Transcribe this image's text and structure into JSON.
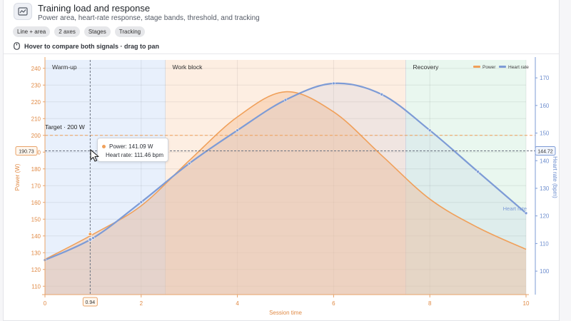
{
  "header": {
    "icon": "chart-icon",
    "title": "Training load and response",
    "subtitle": "Power area, heart-rate response, stage bands, threshold, and tracking"
  },
  "chips": [
    "Line + area",
    "2 axes",
    "Stages",
    "Tracking"
  ],
  "hint": {
    "icon": "mouse-icon",
    "text": "Hover to compare both signals · drag to pan"
  },
  "colors": {
    "power": "#f0a05a",
    "power_fill": "#f7c9a2",
    "heart": "#7d9bd6",
    "warmup_band": "#e8f0fc",
    "work_band": "#fdeee2",
    "recovery_band": "#e9f7ef",
    "threshold": "#f0a05a"
  },
  "tooltip": {
    "power_label": "Power: 141.09 W",
    "heart_label": "Heart rate: 111.46 bpm"
  },
  "crosshair": {
    "x_value": "0.94",
    "left_value": "190.73",
    "right_value": "144.72"
  },
  "chart_data": {
    "type": "line",
    "xlabel": "Session time",
    "ylabel_left": "Power (W)",
    "ylabel_right": "Heart rate (bpm)",
    "xlim": [
      0,
      10
    ],
    "ylim_left": [
      105,
      245
    ],
    "ylim_right": [
      91.5,
      176.5
    ],
    "x_ticks": [
      0,
      2,
      4,
      6,
      8,
      10
    ],
    "y_ticks_left": [
      110,
      120,
      130,
      140,
      150,
      160,
      170,
      180,
      190,
      200,
      210,
      220,
      230,
      240
    ],
    "y_ticks_right": [
      100,
      110,
      120,
      130,
      140,
      150,
      160,
      170
    ],
    "grid": true,
    "legend": "top-right",
    "stages": [
      {
        "name": "Warm-up",
        "start": 0,
        "end": 2.5
      },
      {
        "name": "Work block",
        "start": 2.5,
        "end": 7.5
      },
      {
        "name": "Recovery",
        "start": 7.5,
        "end": 10
      }
    ],
    "threshold": {
      "label": "Target · 200 W",
      "value": 200
    },
    "series": [
      {
        "name": "Power",
        "axis": "left",
        "x": [
          0,
          1,
          2,
          3,
          4,
          5,
          6,
          7,
          8,
          9,
          10
        ],
        "values": [
          126,
          141,
          158,
          185,
          211,
          226,
          214,
          188,
          162,
          145,
          132
        ]
      },
      {
        "name": "Heart rate",
        "axis": "right",
        "x": [
          0,
          1,
          2,
          3,
          4,
          5,
          6,
          7,
          8,
          9,
          10
        ],
        "values": [
          104,
          112,
          125,
          139,
          151,
          162,
          168,
          164,
          151,
          136,
          121
        ],
        "end_label": "Heart rate"
      }
    ]
  }
}
